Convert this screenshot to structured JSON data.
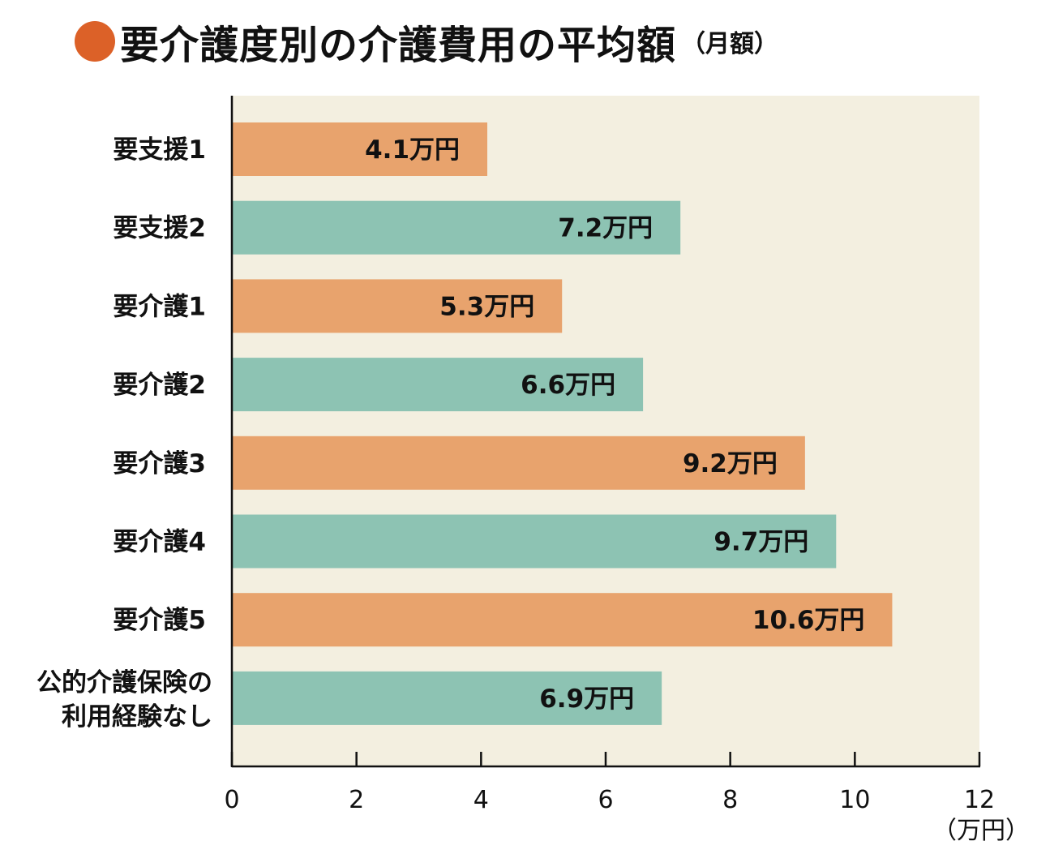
{
  "chart_data": {
    "type": "bar",
    "orientation": "horizontal",
    "title": "要介護度別の介護費用の平均額",
    "subtitle": "（月額）",
    "categories": [
      "要支援1",
      "要支援2",
      "要介護1",
      "要介護2",
      "要介護3",
      "要介護4",
      "要介護5",
      "公的介護保険の利用経験なし"
    ],
    "category_lines": [
      [
        "要支援1"
      ],
      [
        "要支援2"
      ],
      [
        "要介護1"
      ],
      [
        "要介護2"
      ],
      [
        "要介護3"
      ],
      [
        "要介護4"
      ],
      [
        "要介護5"
      ],
      [
        "公的介護保険の",
        "利用経験なし"
      ]
    ],
    "values": [
      4.1,
      7.2,
      5.3,
      6.6,
      9.2,
      9.7,
      10.6,
      6.9
    ],
    "data_labels": [
      "4.1万円",
      "7.2万円",
      "5.3万円",
      "6.6万円",
      "9.2万円",
      "9.7万円",
      "10.6万円",
      "6.9万円"
    ],
    "xlim": [
      0,
      12
    ],
    "xticks": [
      0,
      2,
      4,
      6,
      8,
      10,
      12
    ],
    "xunit": "（万円）",
    "grid": false,
    "colors": {
      "bar_alternate": [
        "#E8A36D",
        "#8DC3B3"
      ],
      "plot_background": "#F3EFE0",
      "title_dot": "#DC6128"
    }
  }
}
